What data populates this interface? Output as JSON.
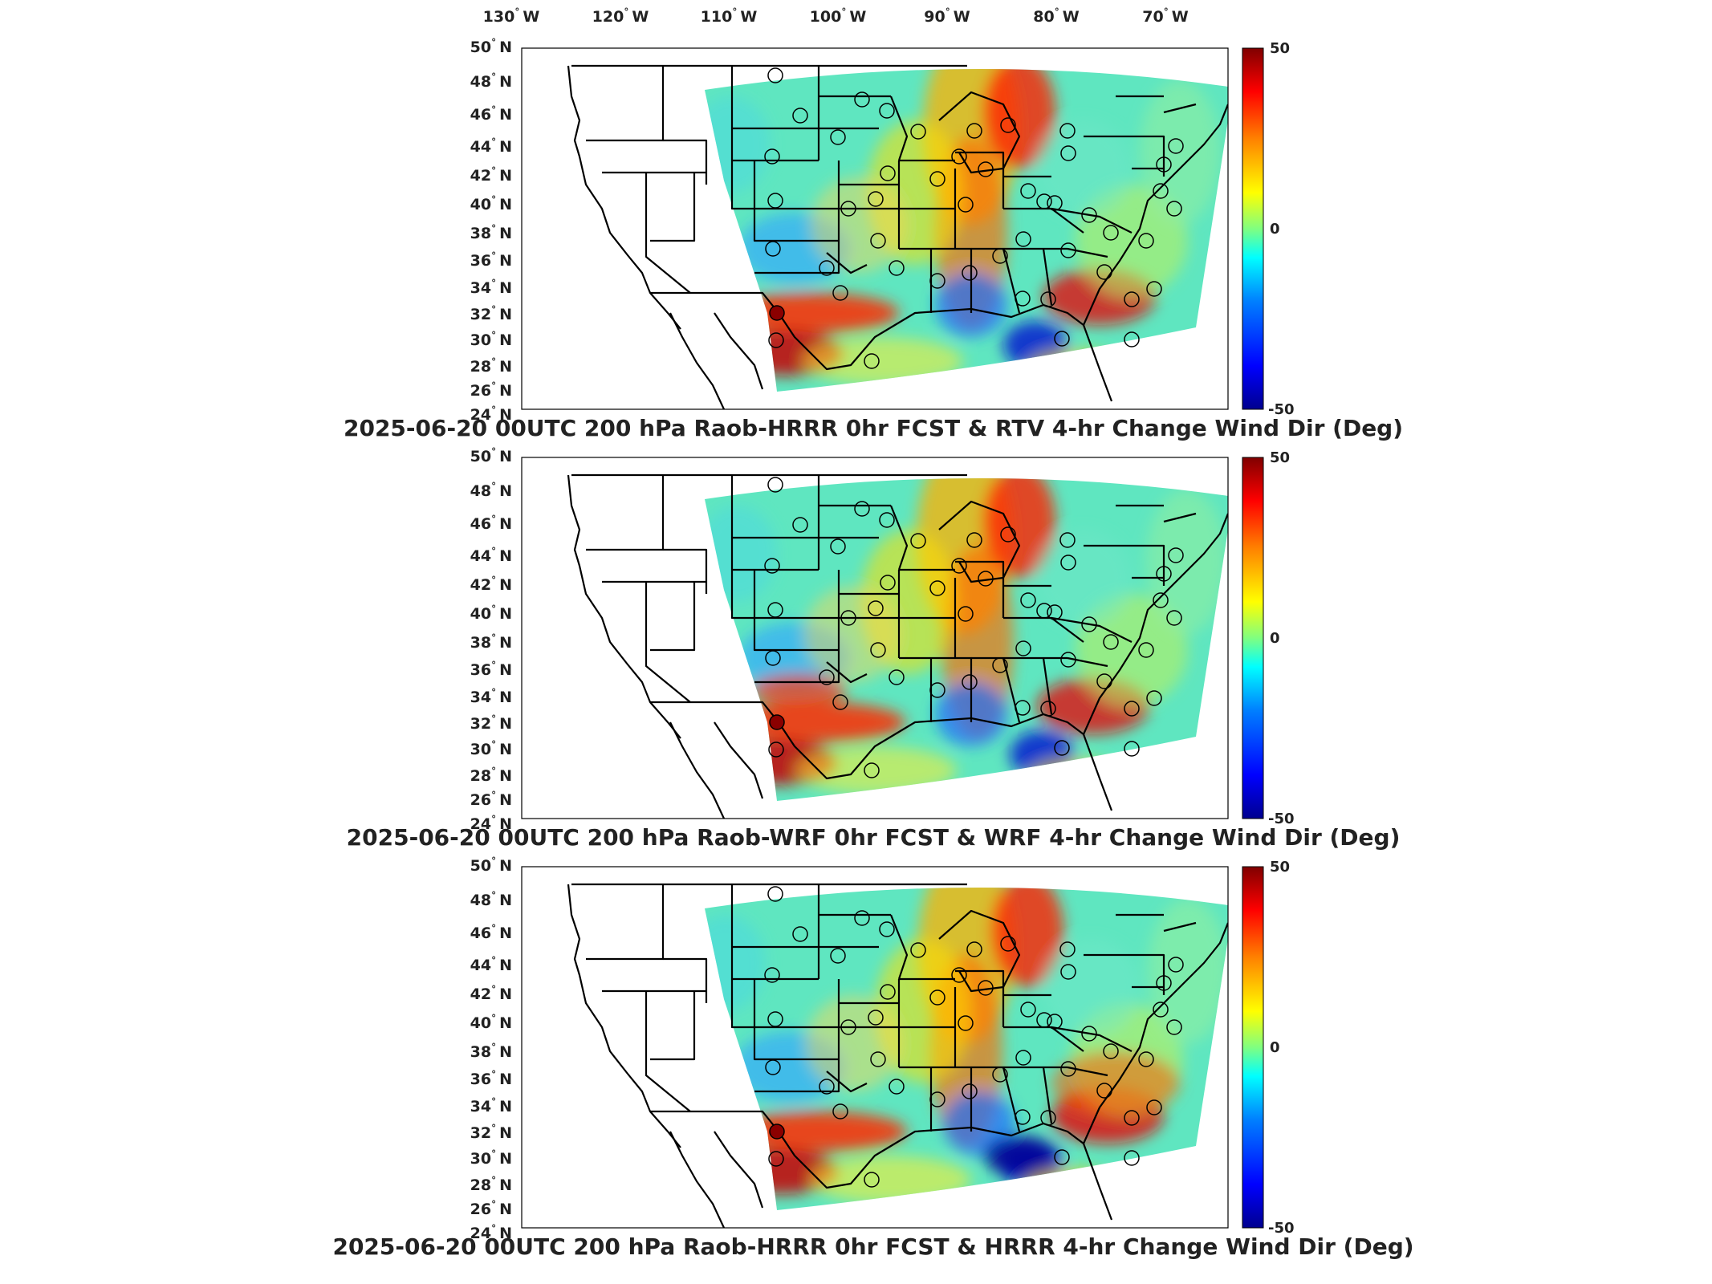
{
  "top_axis": {
    "lon_ticks": [
      "130",
      "120",
      "110",
      "100",
      "90",
      "80",
      "70"
    ],
    "lon_suffix": "W"
  },
  "lat_ticks": [
    "50",
    "48",
    "46",
    "44",
    "42",
    "40",
    "38",
    "36",
    "34",
    "32",
    "30",
    "28",
    "26",
    "24"
  ],
  "lat_suffix": "N",
  "degree_symbol": "°",
  "panels": [
    {
      "title": "2025-06-20 00UTC 200 hPa Raob-HRRR 0hr FCST & RTV 4-hr Change Wind Dir (Deg)",
      "model": "RTV"
    },
    {
      "title": "2025-06-20 00UTC 200 hPa Raob-WRF 0hr FCST & WRF 4-hr Change Wind Dir (Deg)",
      "model": "WRF"
    },
    {
      "title": "2025-06-20 00UTC 200 hPa Raob-HRRR 0hr FCST & HRRR 4-hr Change Wind Dir (Deg)",
      "model": "HRRR"
    }
  ],
  "colorbar": {
    "max_label": "50",
    "mid_label": "0",
    "min_label": "-50",
    "colors": [
      "#00008f",
      "#0000ff",
      "#0080ff",
      "#00ffff",
      "#80ff80",
      "#ffff00",
      "#ff8000",
      "#ff0000",
      "#800000"
    ]
  },
  "map_colors": {
    "background": "#ffffff",
    "domain_base": "#5fe6c0",
    "border": "#000000"
  }
}
